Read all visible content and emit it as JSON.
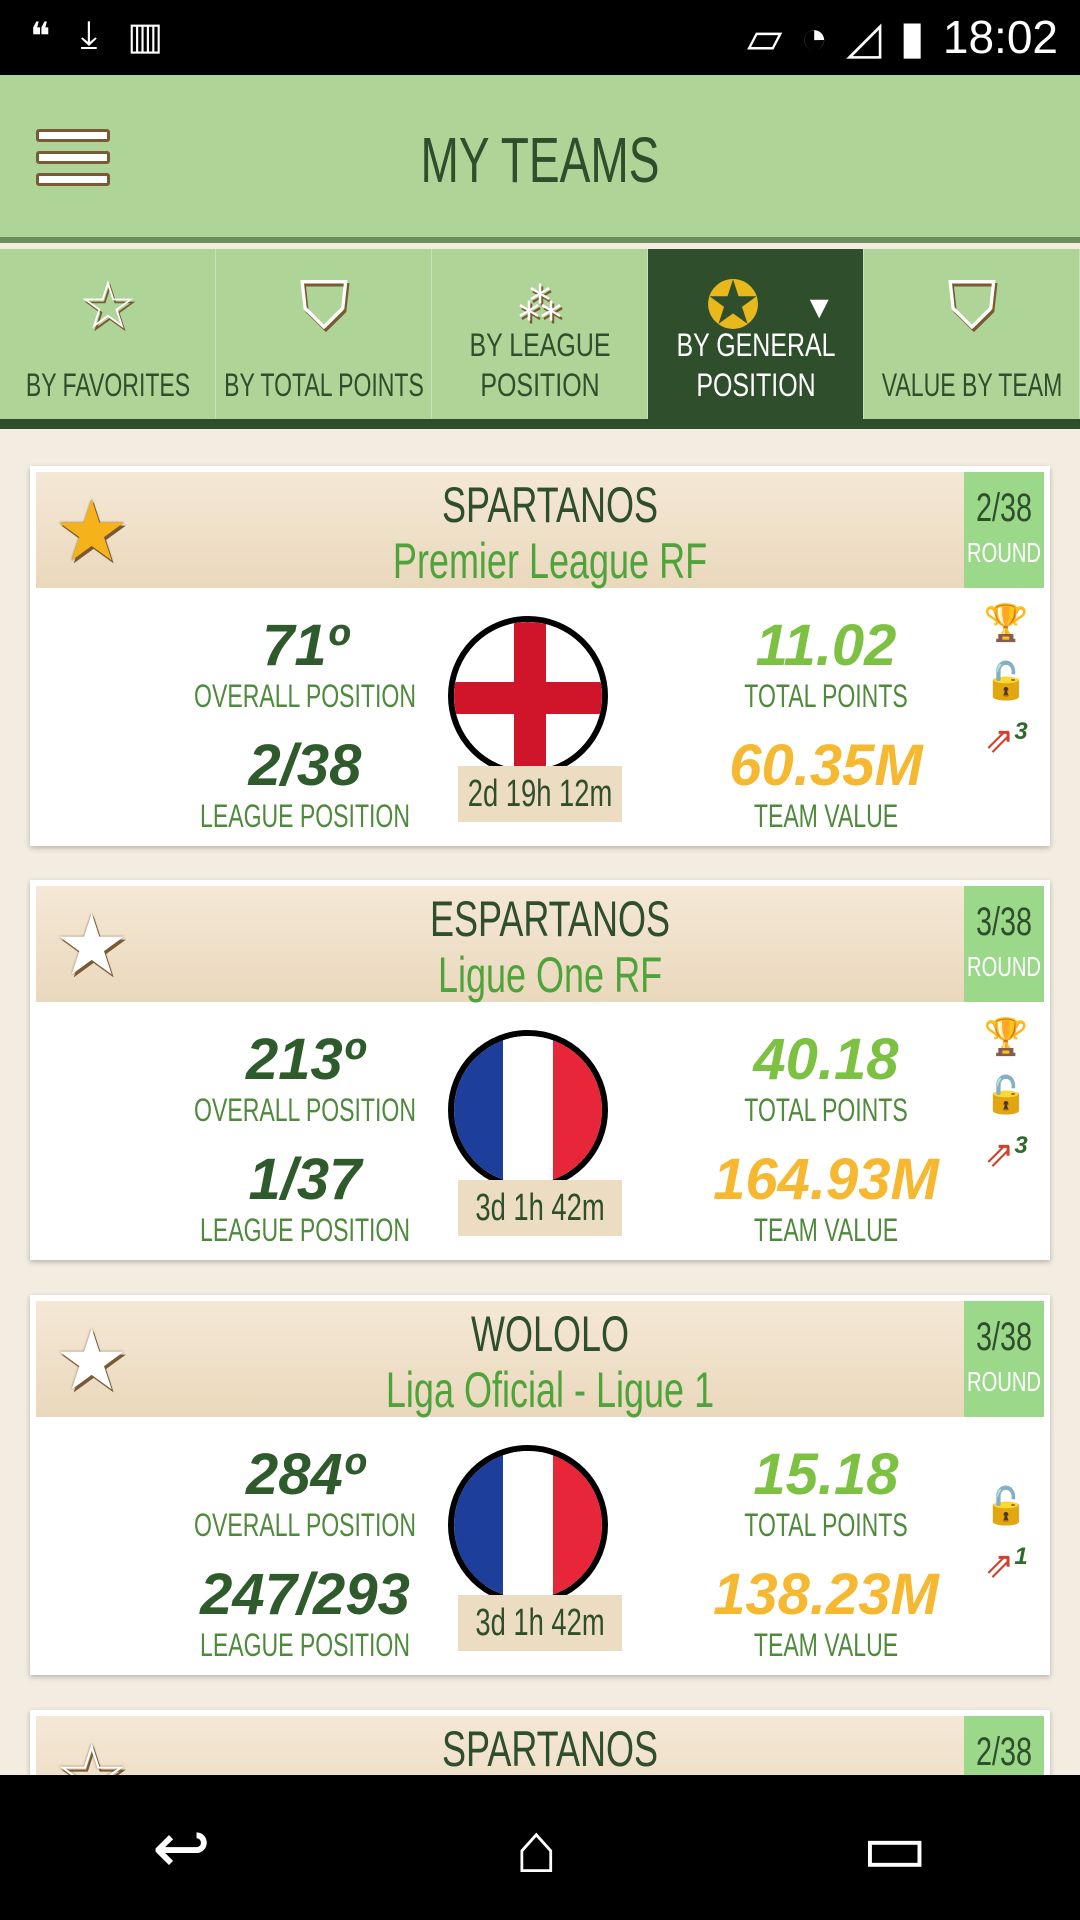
{
  "status_bar": {
    "time": "18:02",
    "icons": [
      "hangouts-icon",
      "download-icon",
      "barcode-icon",
      "rotate-icon",
      "wifi-icon",
      "signal-icon",
      "battery-charging-icon"
    ]
  },
  "app_bar": {
    "title": "MY TEAMS"
  },
  "tabs": [
    {
      "label": "BY FAVORITES",
      "icon": "star-icon"
    },
    {
      "label": "BY TOTAL POINTS",
      "icon": "shield-star-icon"
    },
    {
      "label": "BY LEAGUE POSITION",
      "icon": "stars-icon"
    },
    {
      "label": "BY GENERAL POSITION",
      "icon": "laurel-ball-icon",
      "active": true
    },
    {
      "label": "VALUE BY TEAM",
      "icon": "shield-money-icon"
    }
  ],
  "labels": {
    "overall": "OVERALL POSITION",
    "league": "LEAGUE POSITION",
    "points": "TOTAL POINTS",
    "value": "TEAM VALUE",
    "round": "ROUND"
  },
  "teams": [
    {
      "name": "SPARTANOS",
      "league": "Premier League RF",
      "round": "2/38",
      "favorite": true,
      "overall": "71º",
      "league_position": "2/38",
      "total_points": "11.02",
      "team_value": "60.35M",
      "countdown": "2d 19h 12m",
      "flag": "england",
      "transfers": "3",
      "trophy": true
    },
    {
      "name": "ESPARTANOS",
      "league": "Ligue One RF",
      "round": "3/38",
      "favorite": false,
      "overall": "213º",
      "league_position": "1/37",
      "total_points": "40.18",
      "team_value": "164.93M",
      "countdown": "3d  1h 42m",
      "flag": "france",
      "transfers": "3",
      "trophy": true
    },
    {
      "name": "WOLOLO",
      "league": "Liga Oficial - Ligue 1",
      "round": "3/38",
      "favorite": false,
      "overall": "284º",
      "league_position": "247/293",
      "total_points": "15.18",
      "team_value": "138.23M",
      "countdown": "3d  1h 42m",
      "flag": "france",
      "transfers": "1",
      "trophy": false
    },
    {
      "name": "SPARTANOS",
      "round": "2/38",
      "favorite": false
    }
  ],
  "colors": {
    "appbar": "#afd498",
    "dark_green": "#2f4e2c",
    "light_green": "#4fa33b",
    "points": "#7cc142",
    "value": "#f5b830"
  }
}
